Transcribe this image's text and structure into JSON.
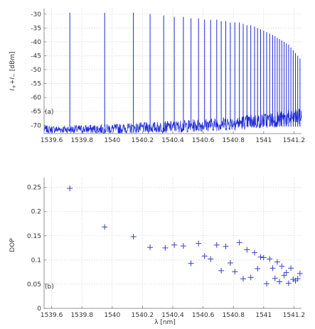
{
  "chart_data": [
    {
      "type": "line",
      "panel_label": "(a)",
      "ylabel": "I+ + I− [dBm]",
      "ylabel_parts": {
        "i": "I",
        "p": "+",
        "plus": "+",
        "m": "−",
        "unit": " [dBm]"
      },
      "xlabel": "",
      "xlim": [
        1539.55,
        1541.25
      ],
      "ylim": [
        -73,
        -28
      ],
      "x_ticks": [
        1539.6,
        1539.8,
        1540,
        1540.2,
        1540.4,
        1540.6,
        1540.8,
        1541,
        1541.2
      ],
      "x_tick_labels": [
        "1539.6",
        "1539.8",
        "1540",
        "1540.2",
        "1540.4",
        "1540.6",
        "1540.8",
        "1541",
        "1541.2"
      ],
      "y_ticks": [
        -70,
        -65,
        -60,
        -55,
        -50,
        -45,
        -40,
        -35,
        -30
      ],
      "y_tick_labels": [
        "-70",
        "-65",
        "-60",
        "-55",
        "-50",
        "-45",
        "-40",
        "-35",
        "-30"
      ],
      "grid": true,
      "color": "#1f2bd6",
      "noise_floor": {
        "start": -71.5,
        "end": -67.0,
        "jitter": 2.2
      },
      "peaks": {
        "x": [
          1539.72,
          1539.95,
          1540.14,
          1540.25,
          1540.34,
          1540.41,
          1540.47,
          1540.52,
          1540.57,
          1540.61,
          1540.65,
          1540.69,
          1540.72,
          1540.75,
          1540.78,
          1540.81,
          1540.84,
          1540.865,
          1540.89,
          1540.915,
          1540.94,
          1540.96,
          1540.98,
          1541.0,
          1541.02,
          1541.04,
          1541.06,
          1541.075,
          1541.09,
          1541.105,
          1541.12,
          1541.135,
          1541.15,
          1541.165,
          1541.18,
          1541.195,
          1541.21,
          1541.225,
          1541.24
        ],
        "y": [
          -29.5,
          -29.5,
          -29.5,
          -30,
          -30.5,
          -31,
          -31,
          -31.5,
          -31.5,
          -32,
          -32,
          -32,
          -32.5,
          -32.5,
          -33,
          -33,
          -33,
          -33.5,
          -34,
          -34,
          -34.5,
          -35,
          -35.5,
          -36,
          -36.5,
          -37,
          -37.5,
          -38,
          -38.5,
          -39,
          -39.5,
          -40,
          -40.5,
          -41,
          -42,
          -43,
          -44,
          -45,
          -46
        ]
      }
    },
    {
      "type": "scatter",
      "panel_label": "(b)",
      "ylabel": "DOP",
      "xlabel": "λ [nm]",
      "xlim": [
        1539.55,
        1541.25
      ],
      "ylim": [
        0,
        0.27
      ],
      "x_ticks": [
        1539.6,
        1539.8,
        1540,
        1540.2,
        1540.4,
        1540.6,
        1540.8,
        1541,
        1541.2
      ],
      "x_tick_labels": [
        "1539.6",
        "1539.8",
        "1540",
        "1540.2",
        "1540.4",
        "1540.6",
        "1540.8",
        "1541",
        "1541.2"
      ],
      "y_ticks": [
        0,
        0.05,
        0.1,
        0.15,
        0.2,
        0.25
      ],
      "y_tick_labels": [
        "0",
        "0.05",
        "0.1",
        "0.15",
        "0.2",
        "0.25"
      ],
      "grid": true,
      "color": "#3a3fc8",
      "marker": "+",
      "x": [
        1539.72,
        1539.95,
        1540.14,
        1540.25,
        1540.35,
        1540.41,
        1540.47,
        1540.52,
        1540.57,
        1540.61,
        1540.65,
        1540.69,
        1540.72,
        1540.75,
        1540.78,
        1540.81,
        1540.84,
        1540.865,
        1540.89,
        1540.915,
        1540.94,
        1540.96,
        1540.98,
        1541.0,
        1541.02,
        1541.04,
        1541.06,
        1541.075,
        1541.09,
        1541.105,
        1541.12,
        1541.135,
        1541.15,
        1541.165,
        1541.18,
        1541.195,
        1541.21,
        1541.225,
        1541.24
      ],
      "y": [
        0.248,
        0.168,
        0.148,
        0.126,
        0.125,
        0.131,
        0.129,
        0.093,
        0.134,
        0.108,
        0.102,
        0.131,
        0.078,
        0.128,
        0.094,
        0.076,
        0.136,
        0.061,
        0.121,
        0.064,
        0.115,
        0.082,
        0.106,
        0.105,
        0.051,
        0.102,
        0.083,
        0.062,
        0.096,
        0.055,
        0.087,
        0.068,
        0.074,
        0.052,
        0.083,
        0.06,
        0.057,
        0.061,
        0.072
      ]
    }
  ]
}
